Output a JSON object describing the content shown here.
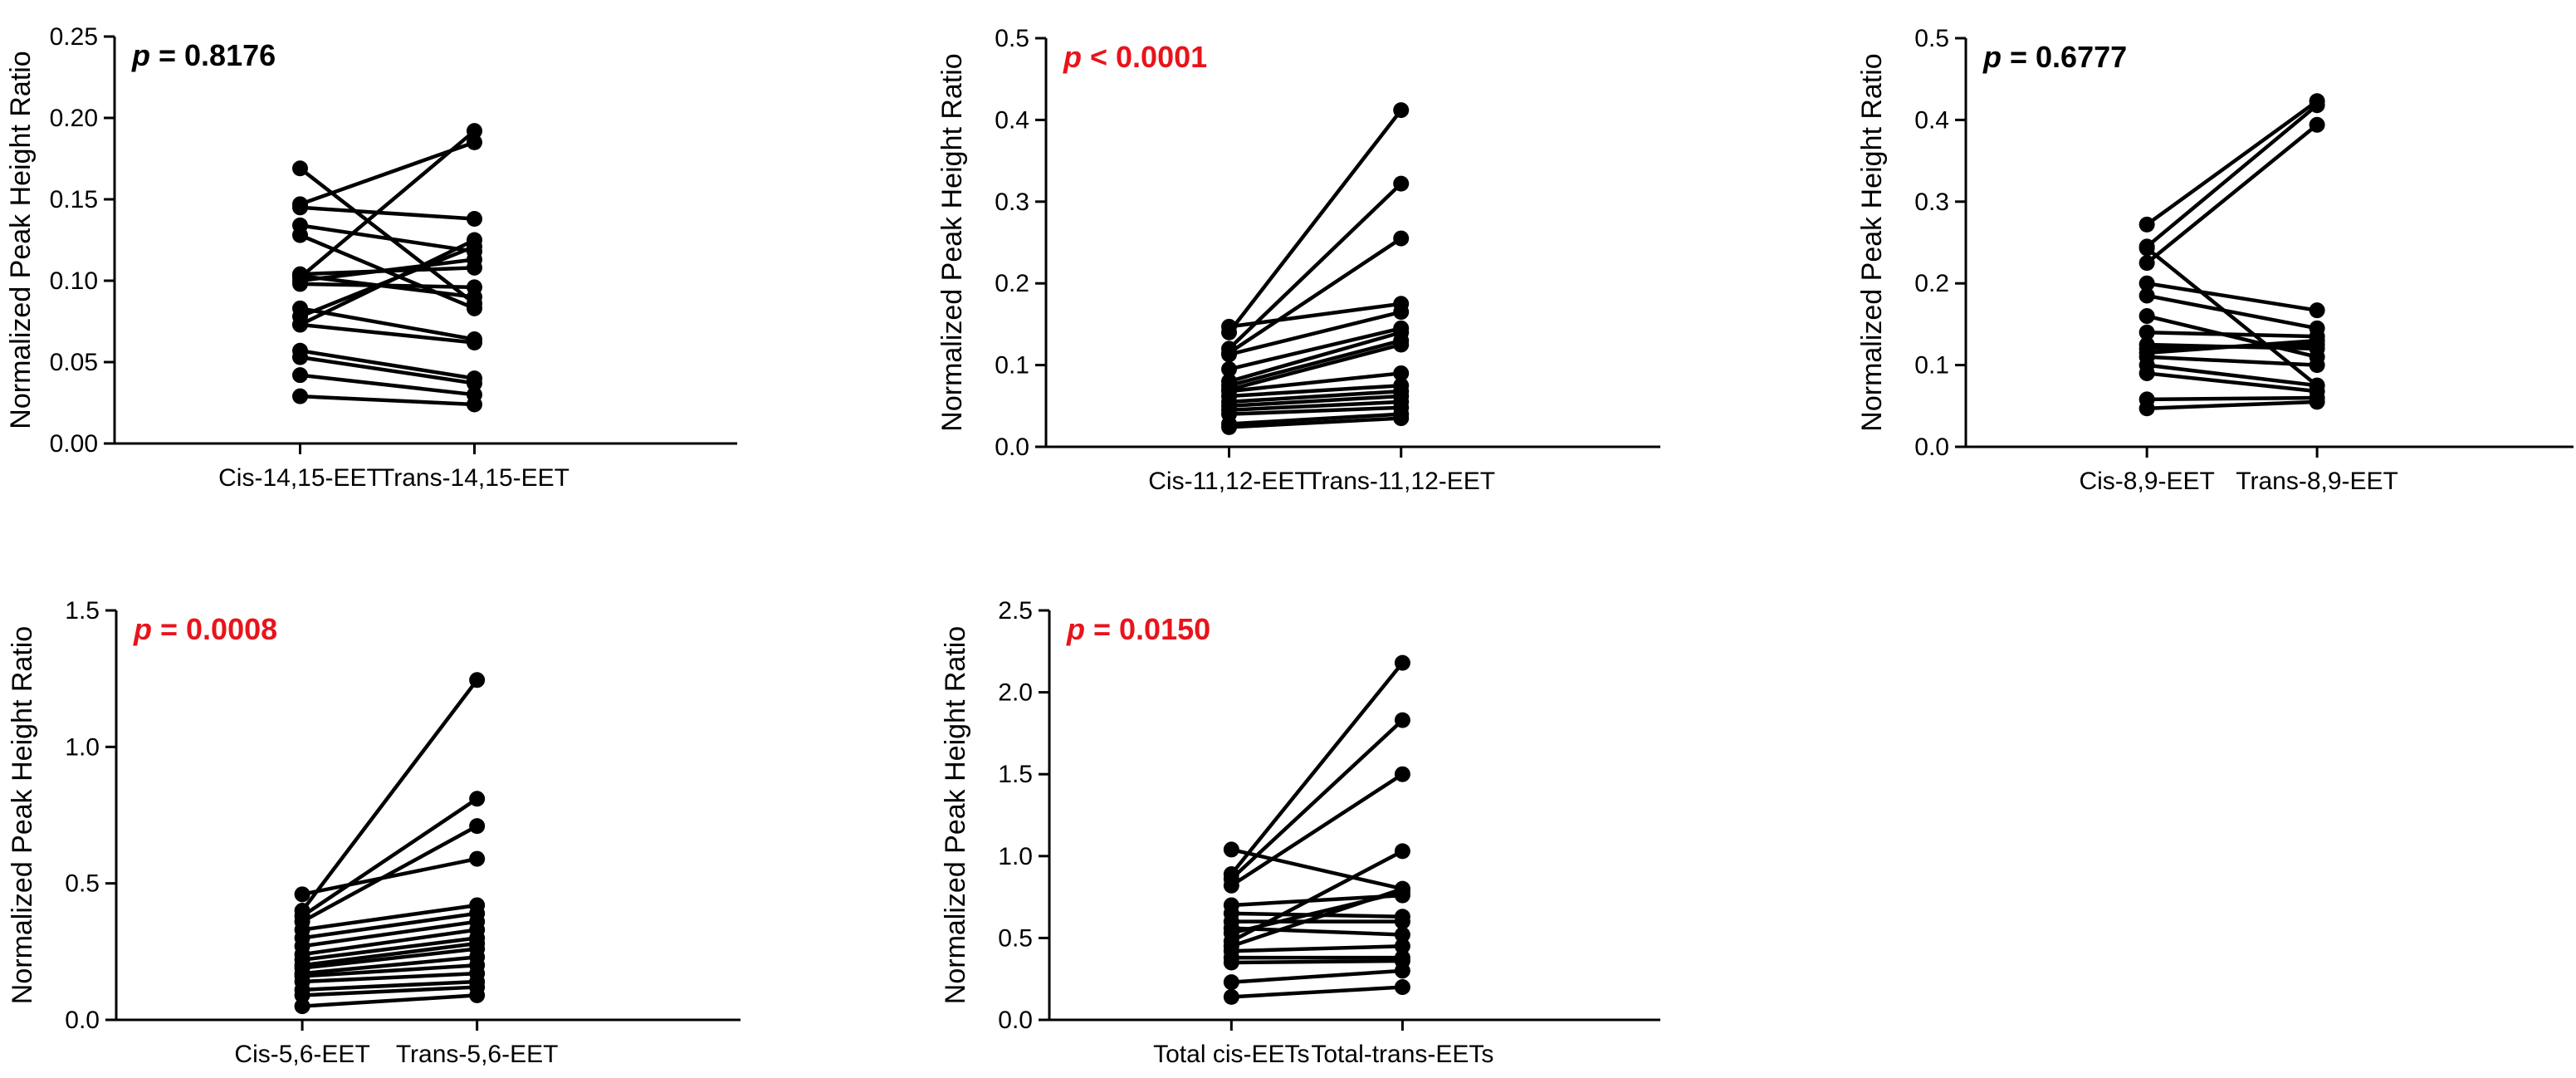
{
  "colors": {
    "ink": "#000000",
    "significant": "#e8141b"
  },
  "chart_data": [
    {
      "type": "line",
      "id": "cis-trans-14-15",
      "ylabel": "Normalized Peak Height Ratio",
      "categories": [
        "Cis-14,15-EET",
        "Trans-14,15-EET"
      ],
      "ylim": [
        0,
        0.25
      ],
      "yticks": [
        "0.00",
        "0.05",
        "0.10",
        "0.15",
        "0.20",
        "0.25"
      ],
      "p_label": "p",
      "p_value": "= 0.8176",
      "significant": false,
      "pairs": [
        [
          0.169,
          0.086
        ],
        [
          0.147,
          0.185
        ],
        [
          0.145,
          0.138
        ],
        [
          0.134,
          0.118
        ],
        [
          0.128,
          0.083
        ],
        [
          0.104,
          0.108
        ],
        [
          0.1,
          0.113
        ],
        [
          0.098,
          0.096
        ],
        [
          0.083,
          0.064
        ],
        [
          0.078,
          0.121
        ],
        [
          0.073,
          0.125
        ],
        [
          0.073,
          0.062
        ],
        [
          0.057,
          0.04
        ],
        [
          0.053,
          0.037
        ],
        [
          0.042,
          0.03
        ],
        [
          0.029,
          0.024
        ],
        [
          0.102,
          0.192
        ],
        [
          0.103,
          0.09
        ]
      ]
    },
    {
      "type": "line",
      "id": "cis-trans-11-12",
      "ylabel": "Normalized Peak Height Ratio",
      "categories": [
        "Cis-11,12-EET",
        "Trans-11,12-EET"
      ],
      "ylim": [
        0,
        0.5
      ],
      "yticks": [
        "0.0",
        "0.1",
        "0.2",
        "0.3",
        "0.4",
        "0.5"
      ],
      "p_label": "p",
      "p_value": "< 0.0001",
      "significant": true,
      "pairs": [
        [
          0.147,
          0.175
        ],
        [
          0.14,
          0.412
        ],
        [
          0.12,
          0.322
        ],
        [
          0.115,
          0.255
        ],
        [
          0.113,
          0.165
        ],
        [
          0.095,
          0.145
        ],
        [
          0.08,
          0.14
        ],
        [
          0.075,
          0.13
        ],
        [
          0.07,
          0.125
        ],
        [
          0.068,
          0.09
        ],
        [
          0.062,
          0.075
        ],
        [
          0.055,
          0.068
        ],
        [
          0.05,
          0.062
        ],
        [
          0.045,
          0.055
        ],
        [
          0.04,
          0.048
        ],
        [
          0.028,
          0.04
        ],
        [
          0.024,
          0.035
        ]
      ]
    },
    {
      "type": "line",
      "id": "cis-trans-8-9",
      "ylabel": "Normalized Peak Height Ratio",
      "categories": [
        "Cis-8,9-EET",
        "Trans-8,9-EET"
      ],
      "ylim": [
        0,
        0.5
      ],
      "yticks": [
        "0.0",
        "0.1",
        "0.2",
        "0.3",
        "0.4",
        "0.5"
      ],
      "p_label": "p",
      "p_value": "= 0.6777",
      "significant": false,
      "pairs": [
        [
          0.272,
          0.423
        ],
        [
          0.245,
          0.418
        ],
        [
          0.243,
          0.075
        ],
        [
          0.225,
          0.394
        ],
        [
          0.2,
          0.167
        ],
        [
          0.185,
          0.145
        ],
        [
          0.16,
          0.11
        ],
        [
          0.14,
          0.135
        ],
        [
          0.125,
          0.12
        ],
        [
          0.12,
          0.125
        ],
        [
          0.115,
          0.13
        ],
        [
          0.11,
          0.1
        ],
        [
          0.1,
          0.075
        ],
        [
          0.09,
          0.068
        ],
        [
          0.058,
          0.06
        ],
        [
          0.047,
          0.055
        ]
      ]
    },
    {
      "type": "line",
      "id": "cis-trans-5-6",
      "ylabel": "Normalized Peak Height Ratio",
      "categories": [
        "Cis-5,6-EET",
        "Trans-5,6-EET"
      ],
      "ylim": [
        0,
        1.5
      ],
      "yticks": [
        "0.0",
        "0.5",
        "1.0",
        "1.5"
      ],
      "p_label": "p",
      "p_value": "= 0.0008",
      "significant": true,
      "pairs": [
        [
          0.46,
          0.59
        ],
        [
          0.4,
          1.245
        ],
        [
          0.38,
          0.81
        ],
        [
          0.36,
          0.71
        ],
        [
          0.33,
          0.42
        ],
        [
          0.3,
          0.39
        ],
        [
          0.27,
          0.36
        ],
        [
          0.24,
          0.33
        ],
        [
          0.22,
          0.3
        ],
        [
          0.2,
          0.28
        ],
        [
          0.19,
          0.26
        ],
        [
          0.17,
          0.23
        ],
        [
          0.16,
          0.2
        ],
        [
          0.14,
          0.17
        ],
        [
          0.11,
          0.14
        ],
        [
          0.09,
          0.12
        ],
        [
          0.05,
          0.09
        ]
      ]
    },
    {
      "type": "line",
      "id": "total-cis-trans",
      "ylabel": "Normalized Peak Height Ratio",
      "categories": [
        "Total cis-EETs",
        "Total-trans-EETs"
      ],
      "ylim": [
        0,
        2.5
      ],
      "yticks": [
        "0.0",
        "0.5",
        "1.0",
        "1.5",
        "2.0",
        "2.5"
      ],
      "p_label": "p",
      "p_value": "= 0.0150",
      "significant": true,
      "pairs": [
        [
          1.04,
          0.8
        ],
        [
          0.89,
          2.18
        ],
        [
          0.86,
          1.83
        ],
        [
          0.82,
          1.5
        ],
        [
          0.7,
          0.76
        ],
        [
          0.65,
          0.63
        ],
        [
          0.6,
          0.6
        ],
        [
          0.56,
          0.52
        ],
        [
          0.53,
          0.78
        ],
        [
          0.48,
          1.03
        ],
        [
          0.45,
          0.8
        ],
        [
          0.42,
          0.45
        ],
        [
          0.38,
          0.38
        ],
        [
          0.35,
          0.36
        ],
        [
          0.23,
          0.3
        ],
        [
          0.14,
          0.2
        ]
      ]
    }
  ]
}
